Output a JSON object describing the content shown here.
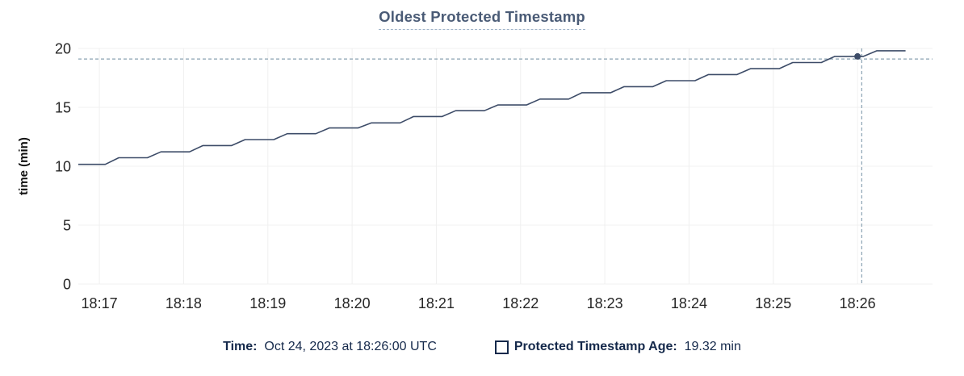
{
  "chart_data": {
    "type": "line",
    "title": "Oldest Protected Timestamp",
    "xlabel": "",
    "ylabel": "time (min)",
    "ylim": [
      0,
      20
    ],
    "y_ticks": [
      0,
      5,
      10,
      15,
      20
    ],
    "x_ticks": [
      {
        "minute": 17,
        "label": "18:17"
      },
      {
        "minute": 18,
        "label": "18:18"
      },
      {
        "minute": 19,
        "label": "18:19"
      },
      {
        "minute": 20,
        "label": "18:20"
      },
      {
        "minute": 21,
        "label": "18:21"
      },
      {
        "minute": 22,
        "label": "18:22"
      },
      {
        "minute": 23,
        "label": "18:23"
      },
      {
        "minute": 24,
        "label": "18:24"
      },
      {
        "minute": 25,
        "label": "18:25"
      },
      {
        "minute": 26,
        "label": "18:26"
      }
    ],
    "x_range_minutes_after_1800": [
      16.75,
      26.89
    ],
    "grid": true,
    "legend_position": "bottom",
    "series": [
      {
        "name": "Protected Timestamp Age",
        "unit": "min",
        "points": [
          [
            16.75,
            10.16
          ],
          [
            17.07,
            10.16
          ],
          [
            17.23,
            10.72
          ],
          [
            17.57,
            10.72
          ],
          [
            17.73,
            11.22
          ],
          [
            18.07,
            11.22
          ],
          [
            18.23,
            11.75
          ],
          [
            18.57,
            11.75
          ],
          [
            18.73,
            12.26
          ],
          [
            19.07,
            12.26
          ],
          [
            19.23,
            12.76
          ],
          [
            19.57,
            12.76
          ],
          [
            19.73,
            13.25
          ],
          [
            20.07,
            13.25
          ],
          [
            20.23,
            13.68
          ],
          [
            20.57,
            13.68
          ],
          [
            20.73,
            14.22
          ],
          [
            21.07,
            14.22
          ],
          [
            21.23,
            14.71
          ],
          [
            21.57,
            14.71
          ],
          [
            21.73,
            15.2
          ],
          [
            22.07,
            15.2
          ],
          [
            22.23,
            15.7
          ],
          [
            22.57,
            15.7
          ],
          [
            22.73,
            16.24
          ],
          [
            23.07,
            16.24
          ],
          [
            23.23,
            16.75
          ],
          [
            23.57,
            16.75
          ],
          [
            23.73,
            17.26
          ],
          [
            24.07,
            17.26
          ],
          [
            24.23,
            17.78
          ],
          [
            24.57,
            17.78
          ],
          [
            24.73,
            18.28
          ],
          [
            25.07,
            18.28
          ],
          [
            25.23,
            18.8
          ],
          [
            25.57,
            18.8
          ],
          [
            25.73,
            19.32
          ],
          [
            26.07,
            19.32
          ],
          [
            26.23,
            19.8
          ],
          [
            26.57,
            19.8
          ]
        ]
      }
    ],
    "hover": {
      "marker": {
        "minute": 26.0,
        "value": 19.32
      },
      "crosshair": {
        "minute": 26.05,
        "value": 19.1
      }
    }
  },
  "legend": {
    "time_label": "Time:",
    "time_value": "Oct 24, 2023 at 18:26:00 UTC",
    "series_label": "Protected Timestamp Age:",
    "series_value": "19.32 min"
  },
  "colors": {
    "title": "#4a5b76",
    "title_underline": "#9fb3c9",
    "legend_text": "#15294b",
    "line": "#3d4c68",
    "marker": "#3d4c68",
    "crosshair": "#8aa2b2",
    "grid": "#f0f0f0",
    "tick_text": "#262626",
    "axis_title_text": "#111111"
  }
}
